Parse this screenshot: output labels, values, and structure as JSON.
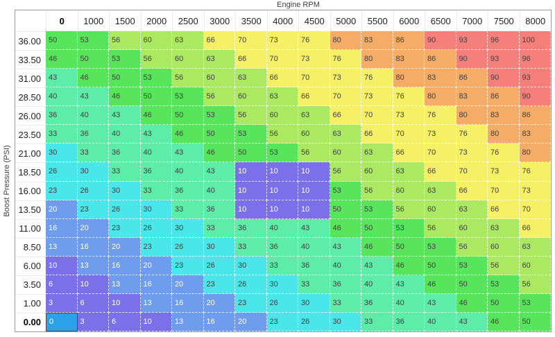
{
  "axis": {
    "x_title": "Engine RPM",
    "y_title": "Boost Pressure (PSI)"
  },
  "chart_data": {
    "type": "heatmap",
    "x_categories": [
      "0",
      "1000",
      "1500",
      "2000",
      "2500",
      "3000",
      "3500",
      "4000",
      "4500",
      "5000",
      "5500",
      "6000",
      "6500",
      "7000",
      "7500",
      "8000"
    ],
    "y_categories": [
      "36.00",
      "33.50",
      "31.00",
      "28.50",
      "26.00",
      "23.50",
      "21.00",
      "18.50",
      "16.00",
      "13.50",
      "11.00",
      "8.50",
      "6.00",
      "3.50",
      "1.00",
      "0.00"
    ],
    "values": [
      [
        50,
        53,
        56,
        60,
        63,
        66,
        70,
        73,
        76,
        80,
        83,
        86,
        90,
        93,
        96,
        100
      ],
      [
        46,
        50,
        53,
        56,
        60,
        63,
        66,
        70,
        73,
        76,
        80,
        83,
        86,
        90,
        93,
        96
      ],
      [
        43,
        46,
        50,
        53,
        56,
        60,
        63,
        66,
        70,
        73,
        76,
        80,
        83,
        86,
        90,
        93
      ],
      [
        40,
        43,
        46,
        50,
        53,
        56,
        60,
        63,
        66,
        70,
        73,
        76,
        80,
        83,
        86,
        90
      ],
      [
        36,
        40,
        43,
        46,
        50,
        53,
        56,
        60,
        63,
        66,
        70,
        73,
        76,
        80,
        83,
        86
      ],
      [
        33,
        36,
        40,
        43,
        46,
        50,
        53,
        56,
        60,
        63,
        66,
        70,
        73,
        76,
        80,
        83
      ],
      [
        30,
        33,
        36,
        40,
        43,
        46,
        50,
        53,
        56,
        60,
        63,
        66,
        70,
        73,
        76,
        80
      ],
      [
        26,
        30,
        33,
        36,
        40,
        43,
        10,
        10,
        10,
        56,
        60,
        63,
        66,
        70,
        73,
        76
      ],
      [
        23,
        26,
        30,
        33,
        36,
        40,
        10,
        10,
        10,
        53,
        56,
        60,
        63,
        66,
        70,
        73
      ],
      [
        20,
        23,
        26,
        30,
        33,
        36,
        10,
        10,
        10,
        50,
        53,
        56,
        60,
        63,
        66,
        70
      ],
      [
        16,
        20,
        23,
        26,
        30,
        33,
        36,
        40,
        43,
        46,
        50,
        53,
        56,
        60,
        63,
        66
      ],
      [
        13,
        16,
        20,
        23,
        26,
        30,
        33,
        36,
        40,
        43,
        46,
        50,
        53,
        56,
        60,
        63
      ],
      [
        10,
        13,
        16,
        20,
        23,
        26,
        30,
        33,
        36,
        40,
        43,
        46,
        50,
        53,
        56,
        60
      ],
      [
        6,
        10,
        13,
        16,
        20,
        23,
        26,
        30,
        33,
        36,
        40,
        43,
        46,
        50,
        53,
        56
      ],
      [
        3,
        6,
        10,
        13,
        16,
        20,
        23,
        26,
        30,
        33,
        36,
        40,
        43,
        46,
        50,
        53
      ],
      [
        0,
        3,
        6,
        10,
        13,
        16,
        20,
        23,
        26,
        30,
        33,
        36,
        40,
        43,
        46,
        50
      ]
    ]
  },
  "selected_cell": {
    "row": "0.00",
    "col": "0",
    "value": 0,
    "bg": "#2aa1e9",
    "text": "#ffffff",
    "border_color": "#4a4a4a"
  },
  "palette": {
    "bands": [
      {
        "max": 10,
        "bg": "#7a71e8",
        "text": "#ffffff"
      },
      {
        "max": 20,
        "bg": "#6f9cec",
        "text": "#ffffff"
      },
      {
        "max": 30,
        "bg": "#4ae6e9",
        "text": "#404040"
      },
      {
        "max": 43,
        "bg": "#5eeca9",
        "text": "#404040"
      },
      {
        "max": 53,
        "bg": "#57e65b",
        "text": "#404040"
      },
      {
        "max": 63,
        "bg": "#abe963",
        "text": "#404040"
      },
      {
        "max": 76,
        "bg": "#f6f066",
        "text": "#404040"
      },
      {
        "max": 86,
        "bg": "#f4ac66",
        "text": "#404040"
      },
      {
        "max": 100,
        "bg": "#f5807b",
        "text": "#404040"
      }
    ]
  }
}
